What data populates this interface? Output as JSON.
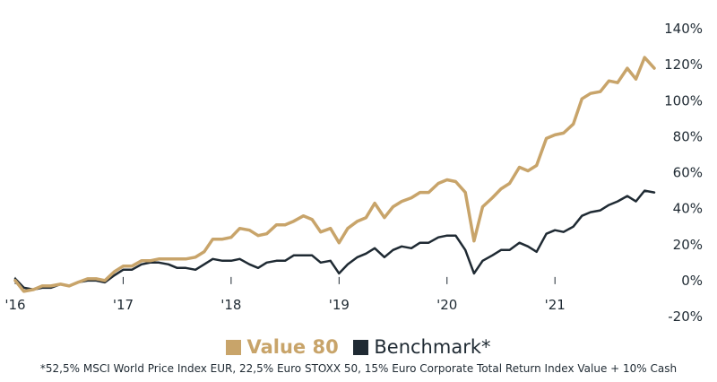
{
  "chart_data": {
    "type": "line",
    "x_labels": [
      "'16",
      "'17",
      "'18",
      "'19",
      "'20",
      "'21"
    ],
    "y_ticks": [
      "140%",
      "120%",
      "100%",
      "80%",
      "60%",
      "40%",
      "20%",
      "0%",
      "-20%"
    ],
    "y_tick_values": [
      140,
      120,
      100,
      80,
      60,
      40,
      20,
      0,
      -20
    ],
    "ylim": [
      -20,
      140
    ],
    "x_range": [
      2016.0,
      2021.92
    ],
    "y_axis_position": "right",
    "grid": false,
    "legend_position": "bottom-center",
    "series": [
      {
        "name": "Value 80",
        "color": "#c8a46a",
        "x": [
          2016.0,
          2016.08,
          2016.17,
          2016.25,
          2016.33,
          2016.42,
          2016.5,
          2016.58,
          2016.67,
          2016.75,
          2016.83,
          2016.92,
          2017.0,
          2017.08,
          2017.17,
          2017.25,
          2017.33,
          2017.42,
          2017.5,
          2017.58,
          2017.67,
          2017.75,
          2017.83,
          2017.92,
          2018.0,
          2018.08,
          2018.17,
          2018.25,
          2018.33,
          2018.42,
          2018.5,
          2018.58,
          2018.67,
          2018.75,
          2018.83,
          2018.92,
          2019.0,
          2019.08,
          2019.17,
          2019.25,
          2019.33,
          2019.42,
          2019.5,
          2019.58,
          2019.67,
          2019.75,
          2019.83,
          2019.92,
          2020.0,
          2020.08,
          2020.17,
          2020.25,
          2020.33,
          2020.42,
          2020.5,
          2020.58,
          2020.67,
          2020.75,
          2020.83,
          2020.92,
          2021.0,
          2021.08,
          2021.17,
          2021.25,
          2021.33,
          2021.42,
          2021.5,
          2021.58,
          2021.67,
          2021.75,
          2021.83,
          2021.92
        ],
        "values": [
          0,
          -6,
          -5,
          -3,
          -3,
          -2,
          -3,
          -1,
          1,
          1,
          0,
          5,
          8,
          8,
          11,
          11,
          12,
          12,
          12,
          12,
          13,
          16,
          23,
          23,
          24,
          29,
          28,
          25,
          26,
          31,
          31,
          33,
          36,
          34,
          27,
          29,
          21,
          29,
          33,
          35,
          43,
          35,
          41,
          44,
          46,
          49,
          49,
          54,
          56,
          55,
          49,
          22,
          41,
          46,
          51,
          54,
          63,
          61,
          64,
          79,
          81,
          82,
          87,
          101,
          104,
          105,
          111,
          110,
          118,
          112,
          124,
          118
        ]
      },
      {
        "name": "Benchmark*",
        "color": "#1f2a33",
        "x": [
          2016.0,
          2016.08,
          2016.17,
          2016.25,
          2016.33,
          2016.42,
          2016.5,
          2016.58,
          2016.67,
          2016.75,
          2016.83,
          2016.92,
          2017.0,
          2017.08,
          2017.17,
          2017.25,
          2017.33,
          2017.42,
          2017.5,
          2017.58,
          2017.67,
          2017.75,
          2017.83,
          2017.92,
          2018.0,
          2018.08,
          2018.17,
          2018.25,
          2018.33,
          2018.42,
          2018.5,
          2018.58,
          2018.67,
          2018.75,
          2018.83,
          2018.92,
          2019.0,
          2019.08,
          2019.17,
          2019.25,
          2019.33,
          2019.42,
          2019.5,
          2019.58,
          2019.67,
          2019.75,
          2019.83,
          2019.92,
          2020.0,
          2020.08,
          2020.17,
          2020.25,
          2020.33,
          2020.42,
          2020.5,
          2020.58,
          2020.67,
          2020.75,
          2020.83,
          2020.92,
          2021.0,
          2021.08,
          2021.17,
          2021.25,
          2021.33,
          2021.42,
          2021.5,
          2021.58,
          2021.67,
          2021.75,
          2021.83,
          2021.92
        ],
        "values": [
          1,
          -4,
          -5,
          -4,
          -4,
          -2,
          -3,
          -1,
          0,
          0,
          -1,
          3,
          6,
          6,
          9,
          10,
          10,
          9,
          7,
          7,
          6,
          9,
          12,
          11,
          11,
          12,
          9,
          7,
          10,
          11,
          11,
          14,
          14,
          14,
          10,
          11,
          4,
          9,
          13,
          15,
          18,
          13,
          17,
          19,
          18,
          21,
          21,
          24,
          25,
          25,
          17,
          4,
          11,
          14,
          17,
          17,
          21,
          19,
          16,
          26,
          28,
          27,
          30,
          36,
          38,
          39,
          42,
          44,
          47,
          44,
          50,
          49
        ]
      }
    ],
    "footnote": "*52,5% MSCI World Price Index EUR, 22,5% Euro STOXX 50, 15% Euro Corporate Total Return Index Value + 10% Cash"
  }
}
